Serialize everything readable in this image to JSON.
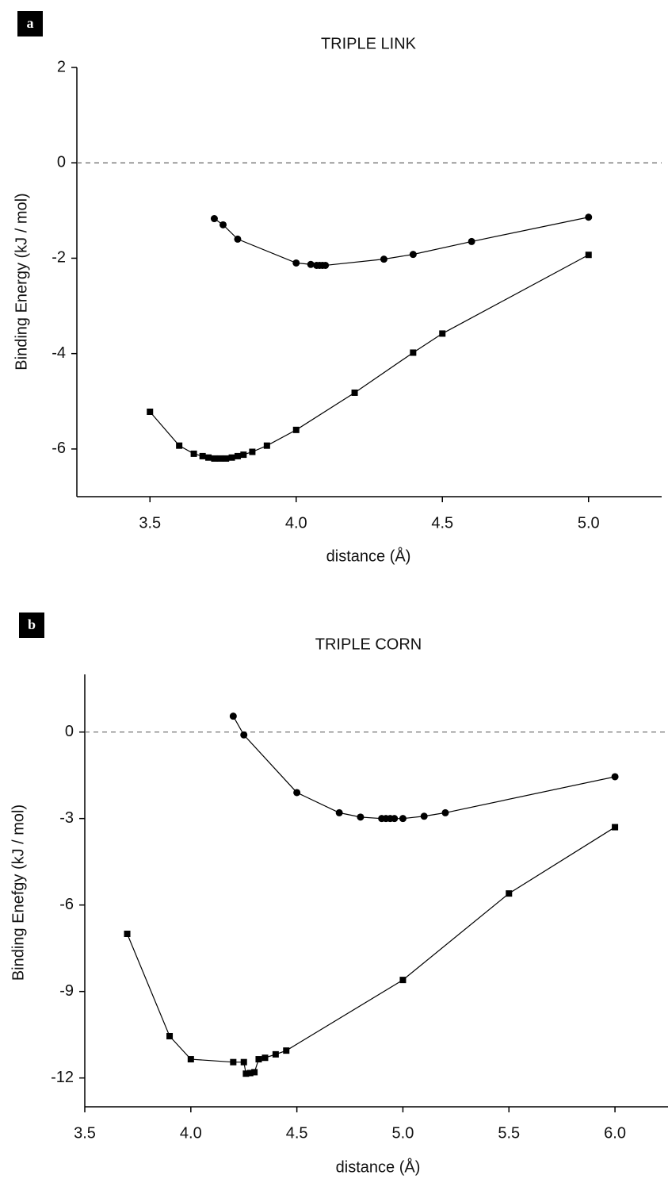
{
  "chart_data": [
    {
      "type": "line",
      "panel_label": "a",
      "title": "TRIPLE LINK",
      "x_label": "distance (Å)",
      "y_label": "Binding Energy (kJ / mol)",
      "xlim": [
        3.25,
        5.25
      ],
      "xticks": [
        3.5,
        {
          "value": 4.0,
          "label": "4.0"
        },
        4.5,
        {
          "value": 5.0,
          "label": "5.0"
        }
      ],
      "ylim": [
        -7,
        2
      ],
      "yticks": [
        -6,
        -4,
        -2,
        0,
        2
      ],
      "hline": 0,
      "series": [
        {
          "marker": "circle",
          "color": "#000000",
          "x": [
            3.72,
            3.75,
            3.8,
            4.0,
            4.05,
            4.07,
            4.08,
            4.09,
            4.1,
            4.3,
            4.4,
            4.6,
            5.0
          ],
          "values": [
            -1.17,
            -1.3,
            -1.6,
            -2.1,
            -2.13,
            -2.15,
            -2.15,
            -2.15,
            -2.15,
            -2.02,
            -1.92,
            -1.65,
            -1.14
          ]
        },
        {
          "marker": "square",
          "color": "#000000",
          "x": [
            3.5,
            3.6,
            3.65,
            3.68,
            3.7,
            3.72,
            3.74,
            3.76,
            3.78,
            3.8,
            3.82,
            3.85,
            3.9,
            4.0,
            4.2,
            4.4,
            4.5,
            5.0
          ],
          "values": [
            -5.22,
            -5.93,
            -6.1,
            -6.15,
            -6.18,
            -6.2,
            -6.2,
            -6.2,
            -6.18,
            -6.15,
            -6.12,
            -6.06,
            -5.93,
            -5.6,
            -4.82,
            -3.98,
            -3.58,
            -1.93
          ]
        }
      ]
    },
    {
      "type": "line",
      "panel_label": "b",
      "title": "TRIPLE CORN",
      "x_label": "distance (Å)",
      "y_label": "Binding Enefgy (kJ / mol)",
      "xlim": [
        3.5,
        6.25
      ],
      "xticks": [
        3.5,
        {
          "value": 4.0,
          "label": "4.0"
        },
        4.5,
        {
          "value": 5.0,
          "label": "5.0"
        },
        5.5,
        {
          "value": 6.0,
          "label": "6.0"
        }
      ],
      "ylim": [
        -13,
        2
      ],
      "yticks": [
        -12,
        -9,
        -6,
        -3,
        0
      ],
      "hline": 0,
      "series": [
        {
          "marker": "circle",
          "color": "#000000",
          "x": [
            4.2,
            4.25,
            4.5,
            4.7,
            4.8,
            4.9,
            4.92,
            4.94,
            4.96,
            5.0,
            5.1,
            5.2,
            6.0
          ],
          "values": [
            0.55,
            -0.1,
            -2.1,
            -2.8,
            -2.95,
            -3.0,
            -3.0,
            -3.0,
            -3.0,
            -3.0,
            -2.92,
            -2.8,
            -1.55
          ]
        },
        {
          "marker": "square",
          "color": "#000000",
          "x": [
            3.7,
            3.9,
            4.0,
            4.2,
            4.25,
            4.26,
            4.28,
            4.3,
            4.32,
            4.35,
            4.4,
            4.45,
            5.0,
            5.5,
            6.0
          ],
          "values": [
            -7.0,
            -10.55,
            -11.35,
            -11.45,
            -11.45,
            -11.85,
            -11.83,
            -11.8,
            -11.35,
            -11.3,
            -11.18,
            -11.05,
            -8.6,
            -5.6,
            -3.3
          ]
        }
      ]
    }
  ]
}
